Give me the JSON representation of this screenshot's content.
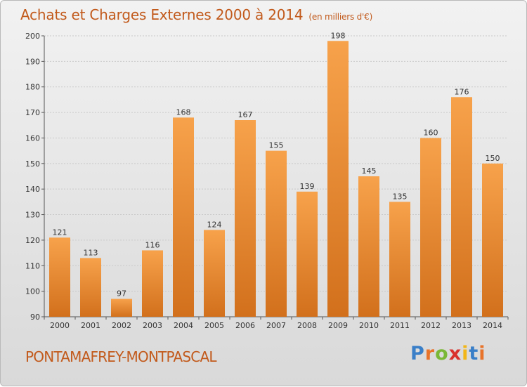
{
  "header": {
    "title": "Achats et Charges Externes 2000 à 2014",
    "subtitle": "(en milliers d'€)"
  },
  "footer": {
    "commune": "PONTAMAFREY-MONTPASCAL",
    "logo_letters": [
      "P",
      "r",
      "o",
      "x",
      "i",
      "t",
      "i"
    ],
    "logo_colors": [
      "#3a7fc8",
      "#e8732a",
      "#7ab836",
      "#d9302c",
      "#f2b619",
      "#3a7fc8",
      "#e8732a"
    ]
  },
  "colors": {
    "title": "#c25a1c",
    "bar_top": "#f7a24b",
    "bar_bottom": "#d2701c",
    "grid": "#c9c9c9"
  },
  "chart_data": {
    "type": "bar",
    "title": "Achats et Charges Externes 2000 à 2014",
    "subtitle": "(en milliers d'€)",
    "categories": [
      "2000",
      "2001",
      "2002",
      "2003",
      "2004",
      "2005",
      "2006",
      "2007",
      "2008",
      "2009",
      "2010",
      "2011",
      "2012",
      "2013",
      "2014"
    ],
    "values": [
      121,
      113,
      97,
      116,
      168,
      124,
      167,
      155,
      139,
      198,
      145,
      135,
      160,
      176,
      150
    ],
    "ylim": [
      90,
      200
    ],
    "yticks": [
      90,
      100,
      110,
      120,
      130,
      140,
      150,
      160,
      170,
      180,
      190,
      200
    ],
    "grid": true,
    "data_labels": true
  }
}
